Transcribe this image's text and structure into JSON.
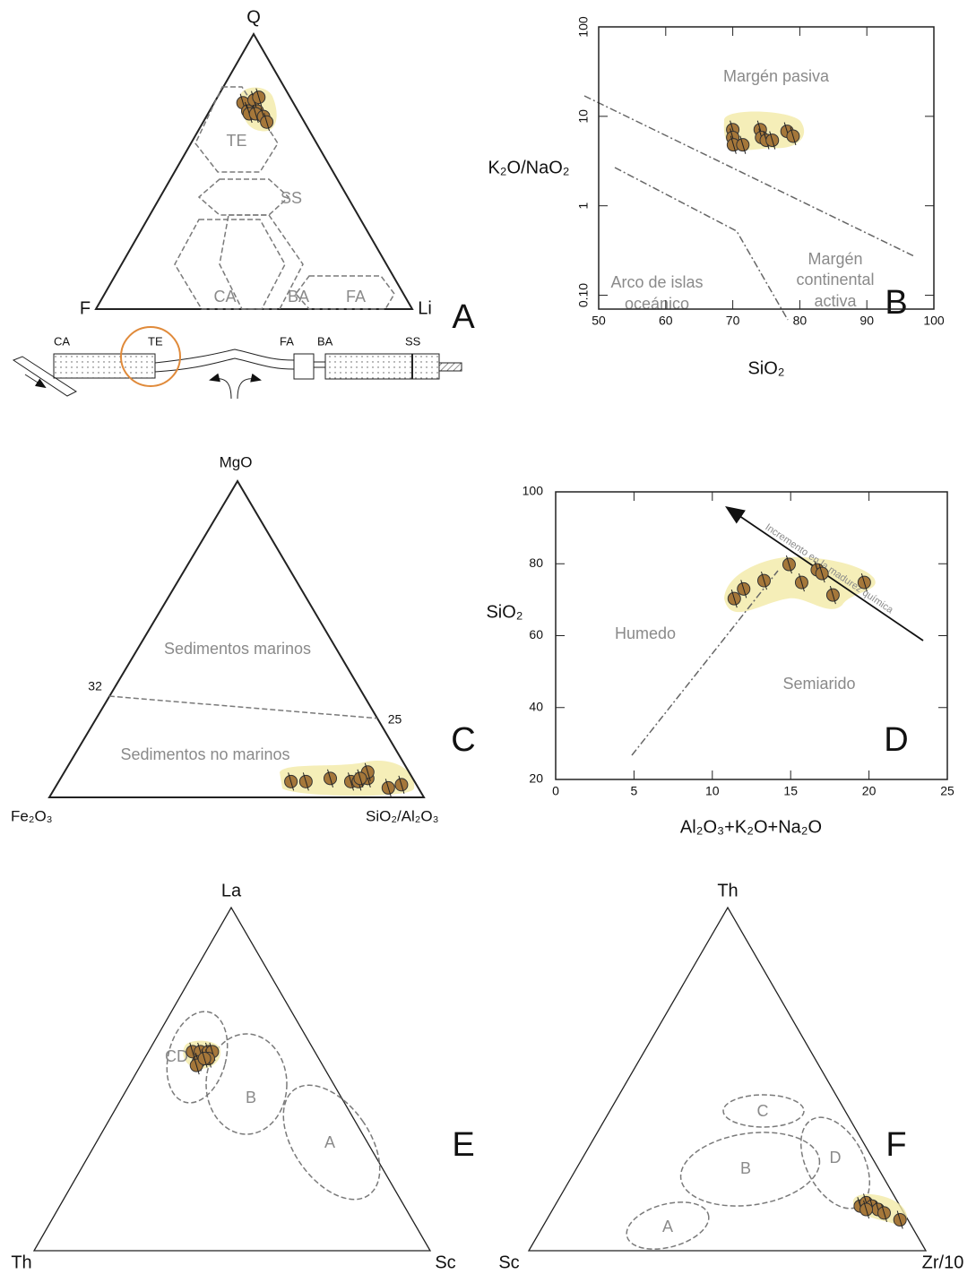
{
  "chart_data": [
    {
      "type": "ternary",
      "panel": "A",
      "vertex_labels": [
        "Q",
        "F",
        "Li"
      ],
      "fields": [
        "TE",
        "SS",
        "CA",
        "BA",
        "FA"
      ],
      "schematic_labels": [
        "CA",
        "TE",
        "FA",
        "BA",
        "SS"
      ],
      "point_color": "#a5773a",
      "points": [
        [
          75,
          16,
          9
        ],
        [
          76,
          12,
          12
        ],
        [
          77,
          10,
          13
        ],
        [
          72,
          16,
          12
        ],
        [
          72,
          13,
          15
        ],
        [
          71,
          16,
          13
        ],
        [
          71,
          14,
          15
        ],
        [
          70,
          12,
          18
        ],
        [
          68,
          12,
          20
        ]
      ]
    },
    {
      "type": "scatter",
      "panel": "B",
      "xlabel": "SiO₂",
      "ylabel": "K₂O/NaO₂",
      "log_y": true,
      "xlim": [
        50,
        100
      ],
      "ylim": [
        0.07,
        100
      ],
      "xticks": [
        50,
        60,
        70,
        80,
        90,
        100
      ],
      "yticks": [
        {
          "value": 0.1,
          "label": "0.10"
        },
        1,
        10,
        100
      ],
      "fields": [
        [
          "Margén pasiva"
        ],
        [
          "Arco de islas",
          "oceánico"
        ],
        [
          "Margén",
          "continental",
          "activa"
        ]
      ],
      "point_color": "#a5773a",
      "x": [
        70,
        70,
        70.1,
        71.5,
        74.1,
        74.3,
        75,
        75.9,
        78.1,
        79
      ],
      "y": [
        7.1,
        5.8,
        4.8,
        4.8,
        7.1,
        5.8,
        5.4,
        5.4,
        6.8,
        6.0
      ]
    },
    {
      "type": "ternary",
      "panel": "C",
      "vertex_labels": [
        "MgO",
        "Fe₂O₃",
        "SiO₂/Al₂O₃"
      ],
      "fields": [
        "Sedimentos marinos",
        "Sedimentos no marinos"
      ],
      "divider": [
        32,
        25
      ],
      "point_color": "#a5773a",
      "points": [
        [
          5,
          33,
          62
        ],
        [
          5,
          29,
          66
        ],
        [
          6,
          22,
          72
        ],
        [
          5,
          17,
          78
        ],
        [
          5,
          15,
          80
        ],
        [
          6,
          12,
          82
        ],
        [
          8,
          11,
          81
        ],
        [
          3,
          8,
          89
        ],
        [
          4,
          4,
          92
        ],
        [
          6,
          14,
          80
        ]
      ]
    },
    {
      "type": "scatter",
      "panel": "D",
      "xlabel": "Al₂O₃+K₂O+Na₂O",
      "ylabel": "SiO₂",
      "log_y": false,
      "xlim": [
        0,
        25
      ],
      "ylim": [
        20,
        100
      ],
      "xticks": [
        0,
        5,
        10,
        15,
        20,
        25
      ],
      "yticks": [
        20,
        40,
        60,
        80,
        100
      ],
      "fields": [
        [
          "Humedo"
        ],
        [
          "Semiarido"
        ]
      ],
      "annotation": "Incremento en la madurez química",
      "point_color": "#a5773a",
      "x": [
        11.4,
        12.0,
        13.3,
        14.9,
        15.7,
        16.7,
        17.0,
        17.7,
        19.7
      ],
      "y": [
        70.3,
        73.0,
        75.3,
        79.8,
        74.8,
        78.3,
        77.3,
        71.3,
        74.8
      ]
    },
    {
      "type": "ternary",
      "panel": "E",
      "vertex_labels": [
        "La",
        "Th",
        "Sc"
      ],
      "fields": [
        "CD",
        "B",
        "A"
      ],
      "point_color": "#a5773a",
      "points": [
        [
          58,
          31,
          11
        ],
        [
          58,
          29,
          13
        ],
        [
          58,
          27,
          15
        ],
        [
          58,
          26,
          16
        ],
        [
          55,
          31,
          14
        ],
        [
          56,
          28,
          16
        ],
        [
          54,
          32,
          14
        ],
        [
          56,
          29,
          15
        ]
      ]
    },
    {
      "type": "ternary",
      "panel": "F",
      "vertex_labels": [
        "Th",
        "Sc",
        "Zr/10"
      ],
      "fields": [
        "A",
        "B",
        "C",
        "D"
      ],
      "point_color": "#a5773a",
      "points": [
        [
          13,
          10,
          77
        ],
        [
          14,
          8,
          78
        ],
        [
          13,
          7,
          80
        ],
        [
          12,
          6,
          82
        ],
        [
          11,
          5,
          84
        ],
        [
          12,
          9,
          79
        ],
        [
          9,
          2,
          89
        ]
      ]
    }
  ]
}
